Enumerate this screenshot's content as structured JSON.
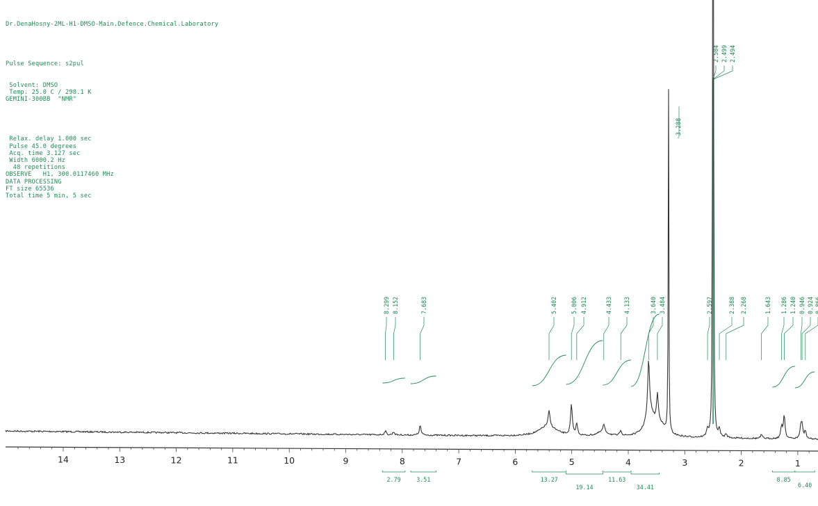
{
  "header": {
    "title": "Dr.DenaHosny-2ML-H1-DMSO-Main.Defence.Chemical.Laboratory",
    "lines_a": [
      "Pulse Sequence: s2pul"
    ],
    "lines_b": [
      " Solvent: DMSO",
      " Temp. 25.0 C / 298.1 K",
      "GEMINI-300BB  \"NMR\""
    ],
    "lines_c": [
      " Relax. delay 1.000 sec",
      " Pulse 45.0 degrees",
      " Acq. time 3.127 sec",
      " Width 6000.2 Hz",
      "  48 repetitions",
      "OBSERVE   H1, 300.0117460 MHz",
      "DATA PROCESSING",
      "FT size 65536",
      "Total time 5 min, 5 sec"
    ]
  },
  "chart_data": {
    "type": "line",
    "title": "",
    "xlabel": "",
    "ylabel": "",
    "x_axis": "chemical shift (ppm), reversed",
    "xlim": [
      14.9,
      0.7
    ],
    "ticks": [
      "14",
      "13",
      "12",
      "11",
      "10",
      "9",
      "8",
      "7",
      "6",
      "5",
      "4",
      "3",
      "2",
      "1"
    ],
    "grid": false,
    "peaks": [
      {
        "ppm": 8.299,
        "label": "8.299",
        "height": 0.01
      },
      {
        "ppm": 8.152,
        "label": "8.152",
        "height": 0.008
      },
      {
        "ppm": 7.683,
        "label": "7.683",
        "height": 0.025
      },
      {
        "ppm": 5.402,
        "label": "5.402",
        "height": 0.04
      },
      {
        "ppm": 5.006,
        "label": "5.006",
        "height": 0.08
      },
      {
        "ppm": 4.912,
        "label": "4.912",
        "height": 0.03
      },
      {
        "ppm": 4.433,
        "label": "4.433",
        "height": 0.02
      },
      {
        "ppm": 4.133,
        "label": "4.133",
        "height": 0.015
      },
      {
        "ppm": 3.64,
        "label": "3.640",
        "height": 0.14
      },
      {
        "ppm": 3.484,
        "label": "3.484",
        "height": 0.07
      },
      {
        "ppm": 3.288,
        "label": "3.288",
        "height": 0.95
      },
      {
        "ppm": 2.597,
        "label": "2.597",
        "height": 0.02
      },
      {
        "ppm": 2.504,
        "label": "2.504",
        "height": 1.0
      },
      {
        "ppm": 2.499,
        "label": "2.499",
        "height": 1.0
      },
      {
        "ppm": 2.494,
        "label": "2.494",
        "height": 1.0
      },
      {
        "ppm": 2.388,
        "label": "2.388",
        "height": 0.02
      },
      {
        "ppm": 2.268,
        "label": "2.268",
        "height": 0.01
      },
      {
        "ppm": 1.643,
        "label": "1.643",
        "height": 0.01
      },
      {
        "ppm": 1.286,
        "label": "1.286",
        "height": 0.03
      },
      {
        "ppm": 1.24,
        "label": "1.240",
        "height": 0.06
      },
      {
        "ppm": 0.946,
        "label": "0.946",
        "height": 0.03
      },
      {
        "ppm": 0.924,
        "label": "0.924",
        "height": 0.03
      },
      {
        "ppm": 0.866,
        "label": "0.866",
        "height": 0.02
      }
    ],
    "integrals": [
      {
        "from": 8.35,
        "to": 7.95,
        "value": "2.79"
      },
      {
        "from": 7.85,
        "to": 7.4,
        "value": "3.51"
      },
      {
        "from": 5.7,
        "to": 5.1,
        "value": "13.27"
      },
      {
        "from": 5.1,
        "to": 4.45,
        "value": "19.14"
      },
      {
        "from": 4.45,
        "to": 3.95,
        "value": "11.63"
      },
      {
        "from": 3.95,
        "to": 3.45,
        "value": "34.41"
      },
      {
        "from": 1.45,
        "to": 1.05,
        "value": "8.85"
      },
      {
        "from": 1.05,
        "to": 0.7,
        "value": "6.40"
      }
    ]
  }
}
